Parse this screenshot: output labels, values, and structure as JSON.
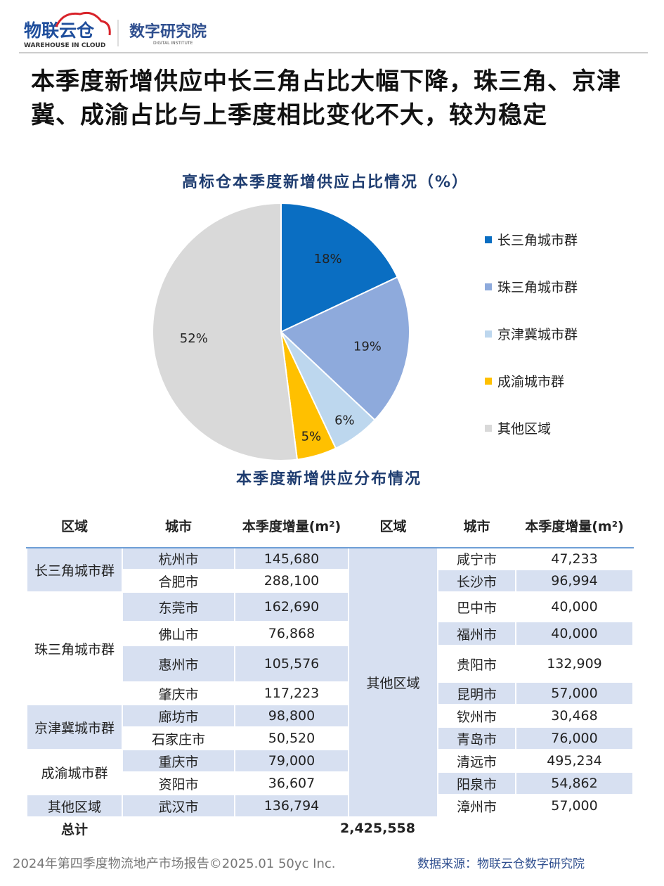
{
  "header": {
    "logo_main": "物联云仓",
    "logo_sub": "WAREHOUSE IN CLOUD",
    "institute": "数字研究院",
    "institute_sub": "DIGITAL INSTITUTE"
  },
  "headline": "本季度新增供应中长三角占比大幅下降，珠三角、京津冀、成渝占比与上季度相比变化不大，较为稳定",
  "chart_data": {
    "type": "pie",
    "title": "高标仓本季度新增供应占比情况（%）",
    "categories": [
      "长三角城市群",
      "珠三角城市群",
      "京津冀城市群",
      "成渝城市群",
      "其他区域"
    ],
    "values": [
      18,
      19,
      6,
      5,
      52
    ],
    "value_labels": [
      "18%",
      "19%",
      "6%",
      "5%",
      "52%"
    ],
    "colors": [
      "#0a6ec2",
      "#8eaadc",
      "#bdd7ee",
      "#ffc000",
      "#d9d9d9"
    ],
    "legend": "right"
  },
  "table": {
    "title": "本季度新增供应分布情况",
    "headers": [
      "区域",
      "城市",
      "本季度增量(m²)"
    ],
    "left": [
      {
        "region": "长三角城市群",
        "cities": [
          [
            "杭州市",
            "145,680"
          ],
          [
            "合肥市",
            "288,100"
          ]
        ]
      },
      {
        "region": "珠三角城市群",
        "cities": [
          [
            "东莞市",
            "162,690"
          ],
          [
            "佛山市",
            "76,868"
          ],
          [
            "惠州市",
            "105,576"
          ],
          [
            "肇庆市",
            "117,223"
          ]
        ]
      },
      {
        "region": "京津冀城市群",
        "cities": [
          [
            "廊坊市",
            "98,800"
          ],
          [
            "石家庄市",
            "50,520"
          ]
        ]
      },
      {
        "region": "成渝城市群",
        "cities": [
          [
            "重庆市",
            "79,000"
          ],
          [
            "资阳市",
            "36,607"
          ]
        ]
      },
      {
        "region": "其他区域",
        "cities": [
          [
            "武汉市",
            "136,794"
          ]
        ]
      }
    ],
    "right": {
      "region": "其他区域",
      "cities": [
        [
          "咸宁市",
          "47,233"
        ],
        [
          "长沙市",
          "96,994"
        ],
        [
          "巴中市",
          "40,000"
        ],
        [
          "福州市",
          "40,000"
        ],
        [
          "贵阳市",
          "132,909"
        ],
        [
          "昆明市",
          "57,000"
        ],
        [
          "钦州市",
          "30,468"
        ],
        [
          "青岛市",
          "76,000"
        ],
        [
          "清远市",
          "495,234"
        ],
        [
          "阳泉市",
          "54,862"
        ],
        [
          "漳州市",
          "57,000"
        ]
      ]
    },
    "total_label": "总计",
    "total_value": "2,425,558"
  },
  "footer": {
    "left": "2024年第四季度物流地产市场报告©2025.01 50yc Inc.",
    "right": "数据来源：物联云仓数字研究院"
  }
}
